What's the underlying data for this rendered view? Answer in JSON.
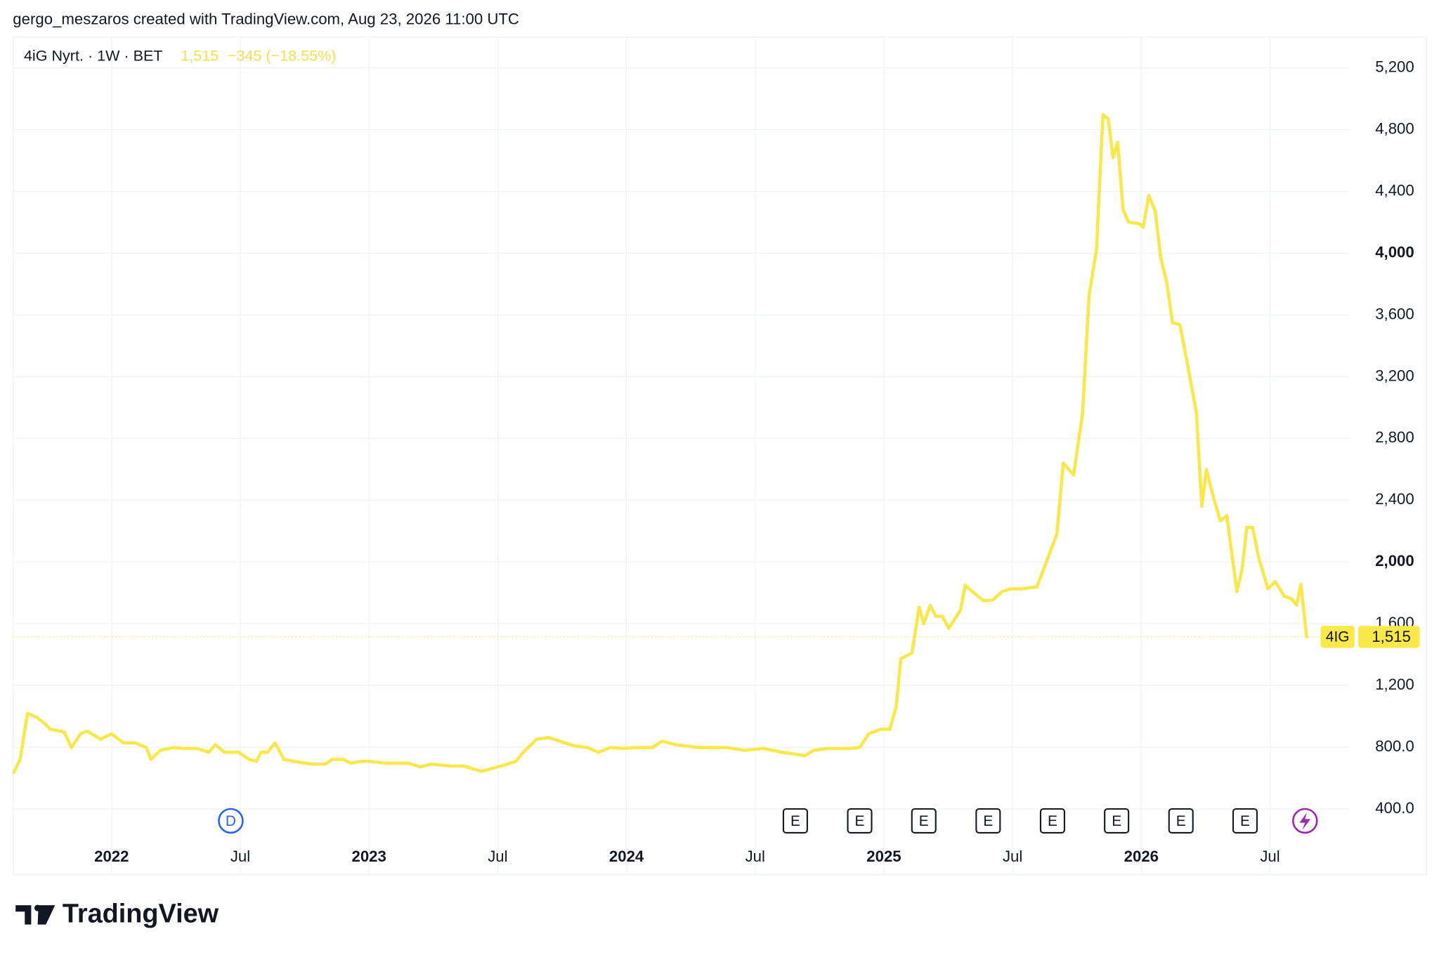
{
  "header": "gergo_meszaros created with TradingView.com, Aug 23, 2026 11:00 UTC",
  "logo_text": "TradingView",
  "chart_data": {
    "type": "line",
    "legend_title": "4iG Nyrt. · 1W · BET",
    "last": {
      "value": 1515,
      "label": "1,515"
    },
    "change": {
      "value": -345,
      "label": "−345 (−18.55%)"
    },
    "symbol_tag": "4IG",
    "x": [
      2021.62,
      2021.645,
      2021.673,
      2021.709,
      2021.745,
      2021.762,
      2021.816,
      2021.844,
      2021.88,
      2021.905,
      2021.957,
      2022.0,
      2022.046,
      2022.093,
      2022.135,
      2022.153,
      2022.189,
      2022.242,
      2022.278,
      2022.332,
      2022.378,
      2022.403,
      2022.439,
      2022.492,
      2022.535,
      2022.563,
      2022.581,
      2022.606,
      2022.635,
      2022.67,
      2022.706,
      2022.777,
      2022.831,
      2022.856,
      2022.902,
      2022.927,
      2022.973,
      2023.0,
      2023.064,
      2023.153,
      2023.2,
      2023.242,
      2023.312,
      2023.366,
      2023.437,
      2023.473,
      2023.527,
      2023.57,
      2023.606,
      2023.652,
      2023.698,
      2023.741,
      2023.795,
      2023.848,
      2023.891,
      2023.937,
      2023.991,
      2024.028,
      2024.1,
      2024.139,
      2024.193,
      2024.282,
      2024.389,
      2024.46,
      2024.531,
      2024.603,
      2024.656,
      2024.692,
      2024.727,
      2024.781,
      2024.816,
      2024.87,
      2024.906,
      2024.941,
      2024.988,
      2025.023,
      2025.048,
      2025.066,
      2025.109,
      2025.137,
      2025.155,
      2025.18,
      2025.202,
      2025.227,
      2025.252,
      2025.298,
      2025.316,
      2025.344,
      2025.387,
      2025.423,
      2025.459,
      2025.494,
      2025.53,
      2025.594,
      2025.619,
      2025.672,
      2025.697,
      2025.737,
      2025.772,
      2025.797,
      2025.826,
      2025.851,
      2025.872,
      2025.89,
      2025.908,
      2025.929,
      2025.95,
      2025.993,
      2026.007,
      2026.029,
      2026.054,
      2026.075,
      2026.1,
      2026.121,
      2026.15,
      2026.178,
      2026.214,
      2026.235,
      2026.253,
      2026.278,
      2026.307,
      2026.332,
      2026.371,
      2026.392,
      2026.41,
      2026.432,
      2026.456,
      2026.492,
      2026.52,
      2026.556,
      2026.585,
      2026.603,
      2026.62,
      2026.642
    ],
    "series": [
      {
        "name": "4iG Nyrt.",
        "color": "#f9e84a",
        "values": [
          638,
          721,
          1018,
          994,
          947,
          917,
          899,
          798,
          887,
          905,
          852,
          887,
          828,
          828,
          798,
          721,
          780,
          798,
          792,
          792,
          768,
          816,
          768,
          768,
          721,
          709,
          768,
          768,
          828,
          721,
          709,
          691,
          691,
          721,
          721,
          697,
          709,
          709,
          697,
          697,
          673,
          691,
          679,
          679,
          644,
          661,
          685,
          709,
          780,
          852,
          863,
          839,
          810,
          798,
          768,
          798,
          792,
          798,
          798,
          839,
          816,
          798,
          798,
          780,
          792,
          768,
          756,
          745,
          780,
          792,
          792,
          792,
          798,
          887,
          917,
          917,
          1065,
          1374,
          1410,
          1707,
          1600,
          1719,
          1648,
          1648,
          1570,
          1689,
          1850,
          1808,
          1749,
          1754,
          1808,
          1826,
          1826,
          1838,
          1945,
          2182,
          2640,
          2563,
          2966,
          3727,
          4024,
          4897,
          4867,
          4618,
          4719,
          4285,
          4202,
          4190,
          4167,
          4374,
          4273,
          3976,
          3798,
          3549,
          3537,
          3293,
          2966,
          2361,
          2598,
          2432,
          2265,
          2301,
          1808,
          1957,
          2224,
          2224,
          2028,
          1826,
          1873,
          1778,
          1760,
          1719,
          1856,
          1515
        ]
      }
    ],
    "xlim": [
      2021.62,
      2026.807
    ],
    "ylim": [
      145,
      5402
    ],
    "xticks": [
      2022,
      {
        "value": 2022.5,
        "label": "Jul"
      },
      2023,
      {
        "value": 2023.5,
        "label": "Jul"
      },
      2024,
      {
        "value": 2024.5,
        "label": "Jul"
      },
      2025,
      {
        "value": 2025.5,
        "label": "Jul"
      },
      2026,
      {
        "value": 2026.5,
        "label": "Jul"
      }
    ],
    "yticks": [
      {
        "value": 400,
        "label": "400.0"
      },
      {
        "value": 800,
        "label": "800.0"
      },
      {
        "value": 1200,
        "label": "1,200"
      },
      {
        "value": 1600,
        "label": "1,600"
      },
      {
        "value": 2000,
        "label": "2,000"
      },
      {
        "value": 2400,
        "label": "2,400"
      },
      {
        "value": 2800,
        "label": "2,800"
      },
      {
        "value": 3200,
        "label": "3,200"
      },
      {
        "value": 3600,
        "label": "3,600"
      },
      {
        "value": 4000,
        "label": "4,000"
      },
      {
        "value": 4400,
        "label": "4,400"
      },
      {
        "value": 4800,
        "label": "4,800"
      },
      {
        "value": 5200,
        "label": "5,200"
      }
    ],
    "grid": true,
    "markers": [
      {
        "x": 2022.463,
        "label": "D"
      },
      {
        "x": 2024.656,
        "label": "E"
      },
      {
        "x": 2024.906,
        "label": "E"
      },
      {
        "x": 2025.155,
        "label": "E"
      },
      {
        "x": 2025.405,
        "label": "E"
      },
      {
        "x": 2025.655,
        "label": "E"
      },
      {
        "x": 2025.904,
        "label": "E"
      },
      {
        "x": 2026.154,
        "label": "E"
      },
      {
        "x": 2026.403,
        "label": "E"
      }
    ]
  }
}
